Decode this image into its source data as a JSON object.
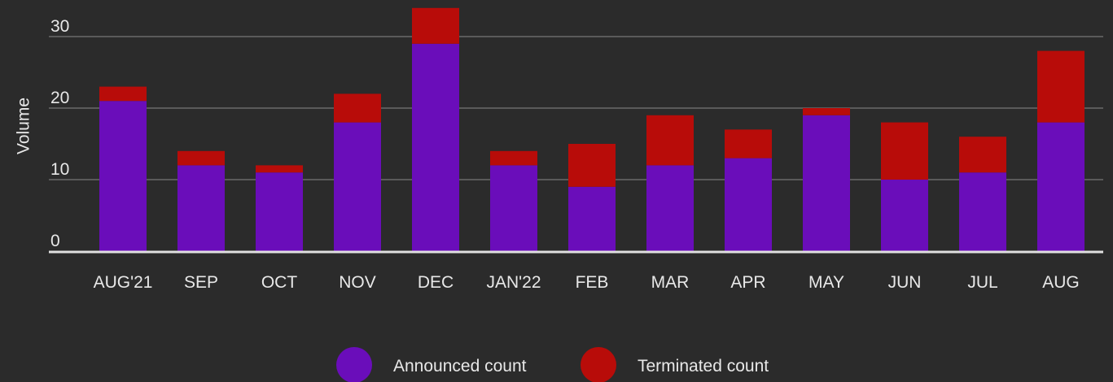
{
  "chart_data": {
    "type": "stacked_bar",
    "y_label": "Volume",
    "categories": [
      "AUG'21",
      "SEP",
      "OCT",
      "NOV",
      "DEC",
      "JAN'22",
      "FEB",
      "MAR",
      "APR",
      "MAY",
      "JUN",
      "JUL",
      "AUG"
    ],
    "series": [
      {
        "name": "Announced count",
        "color": "#6a0dba",
        "values": [
          21,
          12,
          11,
          18,
          29,
          12,
          9,
          12,
          13,
          19,
          10,
          11,
          18
        ]
      },
      {
        "name": "Terminated count",
        "color": "#b80c09",
        "values": [
          2,
          2,
          1,
          4,
          5,
          2,
          6,
          7,
          4,
          1,
          8,
          5,
          10
        ]
      }
    ],
    "ylim": [
      0,
      35
    ],
    "yticks": [
      0,
      10,
      20,
      30
    ],
    "grid": true,
    "legend": "bottom"
  }
}
